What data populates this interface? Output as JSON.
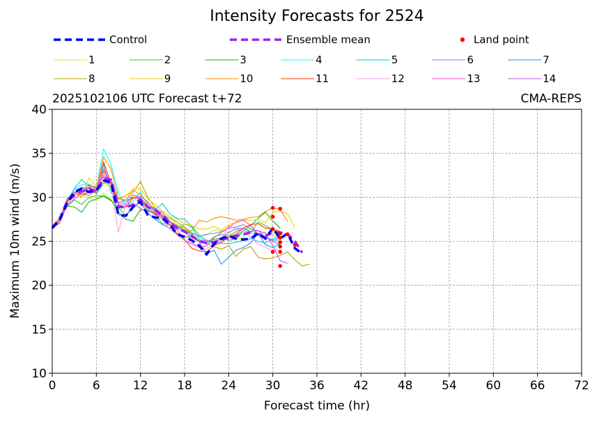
{
  "chart_data": {
    "type": "line",
    "title": "Intensity Forecasts for 2524",
    "subtitle_left": "2025102106 UTC Forecast t+72",
    "subtitle_right": "CMA-REPS",
    "xlabel": "Forecast time (hr)",
    "ylabel": "Maximum 10m wind (m/s)",
    "xlim": [
      0,
      72
    ],
    "ylim": [
      10,
      40
    ],
    "xticks": [
      0,
      6,
      12,
      18,
      24,
      30,
      36,
      42,
      48,
      54,
      60,
      66,
      72
    ],
    "yticks": [
      10,
      15,
      20,
      25,
      30,
      35,
      40
    ],
    "grid": true,
    "legend_labels": {
      "control": "Control",
      "mean": "Ensemble mean",
      "land": "Land point"
    },
    "control": {
      "color": "#0000ee",
      "x": [
        0,
        1,
        2,
        3,
        4,
        5,
        6,
        7,
        8,
        9,
        10,
        11,
        12,
        13,
        14,
        15,
        16,
        17,
        18,
        19,
        20,
        21,
        22,
        23,
        24,
        25,
        26,
        27,
        28,
        29,
        30,
        31,
        32,
        33,
        34
      ],
      "y": [
        26.5,
        27.4,
        29.3,
        30.6,
        31.0,
        30.6,
        30.8,
        31.9,
        31.7,
        28.0,
        27.9,
        28.9,
        29.5,
        28.0,
        27.7,
        27.6,
        26.9,
        25.8,
        25.5,
        25.1,
        24.5,
        23.5,
        24.7,
        25.3,
        25.6,
        25.3,
        25.2,
        25.3,
        25.9,
        25.3,
        26.5,
        25.3,
        25.9,
        24.2,
        23.6
      ]
    },
    "mean": {
      "color": "#a020f0",
      "x": [
        0,
        1,
        2,
        3,
        4,
        5,
        6,
        7,
        8,
        9,
        10,
        11,
        12,
        13,
        14,
        15,
        16,
        17,
        18,
        19,
        20,
        21,
        22,
        23,
        24,
        25,
        26,
        27,
        28,
        29,
        30,
        31,
        32,
        33,
        34
      ],
      "y": [
        26.6,
        27.5,
        29.5,
        30.2,
        30.7,
        30.9,
        30.7,
        32.1,
        32.0,
        28.9,
        28.9,
        29.1,
        29.8,
        28.9,
        28.5,
        28.0,
        27.1,
        26.5,
        26.1,
        25.6,
        25.0,
        24.8,
        24.9,
        25.2,
        25.4,
        25.6,
        25.8,
        26.0,
        25.8,
        25.6,
        26.0,
        26.0,
        25.8,
        25.0,
        23.7
      ]
    },
    "members": [
      {
        "name": "1",
        "color": "#adff2f",
        "y": [
          26.6,
          27.0,
          29.5,
          30.6,
          30.5,
          29.9,
          29.6,
          30.5,
          29.7,
          28.6,
          28.9,
          29.9,
          30.5,
          29.2,
          28.1,
          27.9,
          27.8,
          26.9,
          26.6,
          25.5,
          25.6,
          25.7,
          26.3,
          26.2,
          26.0,
          25.3,
          25.4,
          26.5,
          25.8,
          26.0,
          25.9,
          24.9
        ]
      },
      {
        "name": "2",
        "color": "#32cd32",
        "y": [
          26.5,
          27.5,
          28.9,
          29.7,
          29.2,
          30.0,
          30.2,
          30.1,
          29.6,
          28.8,
          27.9,
          28.8,
          29.5,
          28.6,
          28.0,
          27.0,
          26.9,
          26.4,
          27.0,
          26.6,
          25.2,
          24.8,
          25.5,
          25.8,
          25.6,
          26.1,
          26.5,
          26.0,
          27.2,
          26.8,
          26.3,
          25.9
        ]
      },
      {
        "name": "3",
        "color": "#22aa22",
        "y": [
          26.4,
          27.3,
          29.0,
          28.9,
          28.3,
          29.5,
          29.8,
          30.2,
          29.7,
          28.3,
          27.5,
          27.3,
          28.6,
          28.5,
          28.1,
          27.5,
          26.4,
          25.9,
          25.5,
          25.5,
          25.0,
          24.9,
          25.2,
          25.4,
          25.1,
          25.3,
          26.2,
          26.8,
          27.6,
          28.3,
          27.3,
          26.5
        ]
      },
      {
        "name": "4",
        "color": "#00ffff",
        "y": [
          26.6,
          27.3,
          29.6,
          30.9,
          31.4,
          31.5,
          31.1,
          35.5,
          33.7,
          30.5,
          29.0,
          29.5,
          30.6,
          29.0,
          28.4,
          27.7,
          27.1,
          26.5,
          26.6,
          26.0,
          25.5,
          24.9,
          25.0,
          25.2,
          25.5,
          25.7,
          26.2,
          26.0,
          25.8,
          25.4,
          25.2,
          24.9
        ]
      },
      {
        "name": "5",
        "color": "#00ced1",
        "y": [
          26.5,
          27.4,
          29.4,
          31.0,
          32.0,
          31.3,
          30.4,
          33.8,
          30.5,
          29.9,
          29.5,
          30.0,
          29.8,
          28.9,
          28.6,
          29.3,
          28.1,
          27.6,
          27.5,
          26.7,
          25.7,
          25.1,
          25.0,
          24.8,
          24.7,
          24.9,
          25.1,
          25.3,
          25.0,
          24.8,
          25.3,
          25.6
        ]
      },
      {
        "name": "6",
        "color": "#8a7fe0",
        "y": [
          26.5,
          27.1,
          29.1,
          30.6,
          30.3,
          30.6,
          31.3,
          32.3,
          32.1,
          29.4,
          29.7,
          29.9,
          30.1,
          29.5,
          28.4,
          27.8,
          27.3,
          26.7,
          26.2,
          25.9,
          25.6,
          25.8,
          25.9,
          26.1,
          26.5,
          26.6,
          26.9,
          26.4,
          26.2,
          25.5,
          25.0,
          24.6
        ]
      },
      {
        "name": "7",
        "color": "#1e90ff",
        "y": [
          26.5,
          27.5,
          29.3,
          30.5,
          31.1,
          31.0,
          30.4,
          31.6,
          31.6,
          28.0,
          27.9,
          29.1,
          29.4,
          28.2,
          27.5,
          26.9,
          26.5,
          26.7,
          26.3,
          25.6,
          24.9,
          23.6,
          24.0,
          22.4,
          23.2,
          24.0,
          24.3,
          24.8,
          25.9,
          24.6,
          24.3,
          24.7
        ]
      },
      {
        "name": "8",
        "color": "#b8a000",
        "y": [
          26.6,
          27.3,
          29.8,
          30.4,
          30.1,
          30.6,
          30.5,
          32.9,
          31.6,
          29.9,
          29.7,
          30.6,
          31.8,
          30.0,
          28.8,
          27.9,
          27.6,
          27.2,
          26.6,
          25.8,
          25.0,
          24.8,
          24.4,
          24.1,
          24.5,
          23.3,
          24.1,
          24.4,
          23.2,
          23.0,
          23.1,
          23.4,
          23.8,
          22.9,
          22.2,
          22.4
        ]
      },
      {
        "name": "9",
        "color": "#f0d000",
        "y": [
          26.6,
          27.8,
          29.3,
          30.5,
          30.0,
          32.2,
          31.2,
          31.8,
          31.0,
          29.8,
          29.7,
          31.0,
          31.0,
          29.8,
          29.2,
          28.4,
          27.8,
          27.5,
          27.0,
          26.8,
          26.4,
          26.4,
          26.7,
          26.3,
          26.9,
          27.1,
          27.4,
          27.4,
          27.5,
          27.1,
          28.3,
          28.4,
          28.1,
          26.6
        ]
      },
      {
        "name": "10",
        "color": "#ff8c00",
        "y": [
          26.5,
          27.6,
          29.6,
          30.4,
          30.3,
          31.2,
          31.2,
          34.6,
          33.2,
          29.8,
          30.2,
          30.8,
          30.3,
          29.3,
          28.7,
          28.0,
          27.3,
          26.8,
          26.3,
          26.2,
          27.4,
          27.2,
          27.6,
          27.8,
          27.6,
          27.4,
          27.5,
          27.7,
          27.8,
          28.4,
          28.8,
          28.6,
          27.3
        ]
      },
      {
        "name": "11",
        "color": "#ff3300",
        "y": [
          26.5,
          27.3,
          29.5,
          30.6,
          30.6,
          31.1,
          30.8,
          34.0,
          31.5,
          29.1,
          28.9,
          30.0,
          29.8,
          28.8,
          28.1,
          27.6,
          26.8,
          25.8,
          25.2,
          24.2,
          23.9,
          23.8,
          24.5,
          24.9,
          25.5,
          25.8,
          26.5,
          26.9,
          27.0,
          26.5,
          26.4,
          26.1
        ]
      },
      {
        "name": "12",
        "color": "#ff99ee",
        "y": [
          26.5,
          27.3,
          29.1,
          30.4,
          30.6,
          30.7,
          31.1,
          33.3,
          31.2,
          26.0,
          29.2,
          29.0,
          29.6,
          28.7,
          28.3,
          27.5,
          26.4,
          25.7,
          25.1,
          24.8,
          24.4,
          24.2,
          24.6,
          25.3,
          26.8,
          26.4,
          26.2,
          25.4,
          24.7,
          24.3,
          23.9,
          24.1
        ]
      },
      {
        "name": "13",
        "color": "#ff44cc",
        "y": [
          26.5,
          27.1,
          29.1,
          29.8,
          30.5,
          30.2,
          30.9,
          32.5,
          32.0,
          29.2,
          28.9,
          29.3,
          28.7,
          28.4,
          28.2,
          27.8,
          26.9,
          26.3,
          25.1,
          24.7,
          24.3,
          24.5,
          25.4,
          26.0,
          26.6,
          27.2,
          27.4,
          26.8,
          25.8,
          25.5,
          25.1,
          25.4
        ]
      },
      {
        "name": "14",
        "color": "#c055ee",
        "y": [
          26.6,
          27.4,
          29.8,
          30.6,
          30.7,
          31.4,
          31.0,
          33.1,
          31.7,
          29.4,
          29.2,
          30.3,
          29.9,
          29.0,
          28.7,
          28.3,
          27.2,
          26.5,
          26.0,
          25.4,
          25.1,
          25.1,
          24.8,
          25.4,
          26.0,
          26.4,
          26.5,
          26.1,
          26.2,
          25.9,
          24.5,
          22.8,
          22.5
        ]
      }
    ],
    "land_points": [
      {
        "x": 30.0,
        "y": 28.8
      },
      {
        "x": 30.0,
        "y": 27.8
      },
      {
        "x": 30.0,
        "y": 26.4
      },
      {
        "x": 30.0,
        "y": 23.8
      },
      {
        "x": 31.0,
        "y": 28.7
      },
      {
        "x": 31.0,
        "y": 25.9
      },
      {
        "x": 31.0,
        "y": 25.4
      },
      {
        "x": 31.0,
        "y": 24.9
      },
      {
        "x": 31.0,
        "y": 24.4
      },
      {
        "x": 31.0,
        "y": 23.8
      },
      {
        "x": 31.0,
        "y": 22.2
      },
      {
        "x": 32.0,
        "y": 25.8
      },
      {
        "x": 33.0,
        "y": 24.6
      }
    ],
    "land_color": "#ff0000"
  }
}
